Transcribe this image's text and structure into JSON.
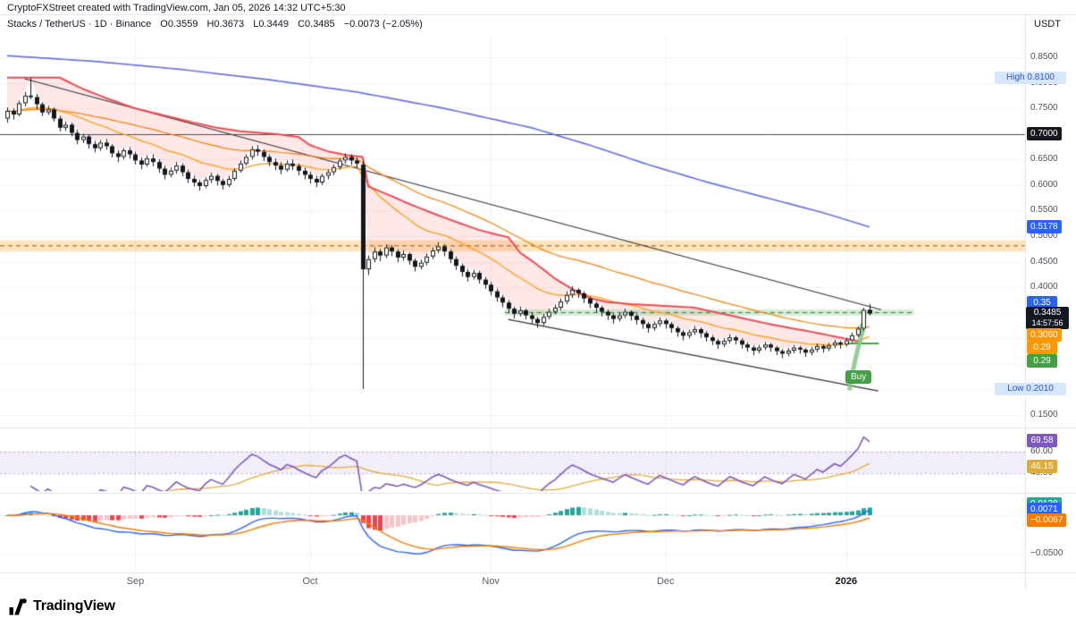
{
  "attribution": "CryptoFXStreet created with TradingView.com, Jan 05, 2026 14:32 UTC+5:30",
  "header": {
    "symbol": "Stacks / TetherUS · 1D · Binance",
    "o_label": "O",
    "o": "0.3559",
    "h_label": "H",
    "h": "0.3673",
    "l_label": "L",
    "l": "0.3449",
    "c_label": "C",
    "c": "0.3485",
    "change": "−0.0073 (−2.05%)",
    "currency": "USDT"
  },
  "logo": {
    "text": "TradingView"
  },
  "chart_data": {
    "type": "candlestick",
    "ylim": [
      0.1395,
      0.8815
    ],
    "x_axis": {
      "labels": [
        {
          "t": "Sep",
          "i": 22,
          "bold": false
        },
        {
          "t": "Oct",
          "i": 52,
          "bold": false
        },
        {
          "t": "Nov",
          "i": 83,
          "bold": false
        },
        {
          "t": "Dec",
          "i": 113,
          "bold": false
        },
        {
          "t": "2026",
          "i": 144,
          "bold": true
        }
      ]
    },
    "price_axis": {
      "ticks": [
        {
          "t": "0.8500",
          "v": 0.85
        },
        {
          "t": "0.8000",
          "v": 0.8
        },
        {
          "t": "0.7500",
          "v": 0.75
        },
        {
          "t": "0.6500",
          "v": 0.65
        },
        {
          "t": "0.6000",
          "v": 0.6
        },
        {
          "t": "0.5500",
          "v": 0.55
        },
        {
          "t": "0.5000",
          "v": 0.5
        },
        {
          "t": "0.4500",
          "v": 0.45
        },
        {
          "t": "0.4000",
          "v": 0.4
        },
        {
          "t": "0.2500",
          "v": 0.25
        },
        {
          "t": "0.1500",
          "v": 0.15
        }
      ]
    },
    "price_pills": [
      {
        "t": "High 0.8100",
        "pos": 0.81,
        "style": "hl"
      },
      {
        "t": "0.7000",
        "pos": 0.7,
        "style": "black"
      },
      {
        "t": "0.5178",
        "pos": 0.5178,
        "style": "blue"
      },
      {
        "t": "0.35",
        "pos": 0.369,
        "style": "blue"
      },
      {
        "t": "0.3485",
        "sub": "14:57:56",
        "pos": 0.3485,
        "style": "last"
      },
      {
        "t": "0.3060",
        "pos": 0.306,
        "style": "orange"
      },
      {
        "t": "0.29",
        "pos": 0.281,
        "style": "orange"
      },
      {
        "t": "0.29",
        "pos": 0.2555,
        "style": "green"
      },
      {
        "t": "Low 0.2010",
        "pos": 0.201,
        "style": "hl"
      }
    ],
    "rsi_axis": {
      "ticks": [
        {
          "t": "60.00",
          "v": 60
        },
        {
          "t": "40.00",
          "v": 40
        }
      ],
      "pills": [
        {
          "t": "69.58",
          "v": 69.58,
          "style": "purple"
        },
        {
          "t": "46.15",
          "v": 46.15,
          "style": "yellow"
        }
      ]
    },
    "macd_axis": {
      "ticks": [
        {
          "t": "−0.0500",
          "v": -0.05
        }
      ],
      "pills": [
        {
          "t": "0.0138",
          "v": 0.0138,
          "style": "teal"
        },
        {
          "t": "0.0071",
          "v": 0.0071,
          "style": "blue"
        },
        {
          "t": "−0.0067",
          "v": -0.0067,
          "style": "deeporange"
        }
      ]
    },
    "levels": {
      "black_line": 0.7,
      "orange_zone": {
        "line": 0.481,
        "top": 0.492,
        "bottom": 0.47
      },
      "green_zone": {
        "line": 0.3505,
        "top": 0.3565,
        "bottom": 0.3445,
        "from_i": 85.4,
        "to_x": 1022
      }
    },
    "trendlines": [
      {
        "i1": 3,
        "v1": 0.808,
        "i2": 150,
        "v2": 0.356
      },
      {
        "i1": 86,
        "v1": 0.337,
        "i2": 149.5,
        "v2": 0.197
      }
    ],
    "emas": {
      "fast": 20,
      "slow": 50
    },
    "ma_blue": [
      [
        0,
        0.853
      ],
      [
        15,
        0.842
      ],
      [
        30,
        0.826
      ],
      [
        45,
        0.806
      ],
      [
        60,
        0.782
      ],
      [
        75,
        0.75
      ],
      [
        90,
        0.712
      ],
      [
        100,
        0.678
      ],
      [
        110,
        0.64
      ],
      [
        120,
        0.606
      ],
      [
        130,
        0.576
      ],
      [
        140,
        0.546
      ],
      [
        148,
        0.518
      ]
    ],
    "red_stop": [
      [
        0,
        0.81
      ],
      [
        9,
        0.81
      ],
      [
        13,
        0.788
      ],
      [
        17,
        0.77
      ],
      [
        22,
        0.75
      ],
      [
        27,
        0.736
      ],
      [
        32,
        0.722
      ],
      [
        36,
        0.712
      ],
      [
        40,
        0.705
      ],
      [
        46,
        0.7
      ],
      [
        50,
        0.694
      ],
      [
        52,
        0.678
      ],
      [
        55,
        0.666
      ],
      [
        58,
        0.659
      ],
      [
        61,
        0.655
      ],
      [
        62,
        0.597
      ],
      [
        65,
        0.583
      ],
      [
        69,
        0.563
      ],
      [
        73,
        0.545
      ],
      [
        77,
        0.528
      ],
      [
        81,
        0.512
      ],
      [
        84,
        0.503
      ],
      [
        86,
        0.498
      ],
      [
        88,
        0.468
      ],
      [
        90,
        0.452
      ],
      [
        92,
        0.435
      ],
      [
        94,
        0.417
      ],
      [
        96,
        0.403
      ],
      [
        98,
        0.39
      ],
      [
        100,
        0.379
      ],
      [
        103,
        0.371
      ],
      [
        107,
        0.367
      ],
      [
        112,
        0.364
      ],
      [
        118,
        0.36
      ],
      [
        122,
        0.35
      ],
      [
        126,
        0.34
      ],
      [
        130,
        0.33
      ],
      [
        134,
        0.321
      ],
      [
        138,
        0.313
      ],
      [
        141,
        0.306
      ],
      [
        144,
        0.299
      ],
      [
        146,
        0.295
      ]
    ],
    "green_stop": {
      "v": 0.29,
      "from_i": 144.2,
      "to_i": 149.6
    },
    "buy_marker": {
      "i": 146,
      "from": 0.202,
      "to": 0.326
    },
    "buy_label": {
      "text": "Buy"
    },
    "candles": [
      [
        0.73,
        0.752,
        0.722,
        0.745
      ],
      [
        0.745,
        0.75,
        0.728,
        0.738
      ],
      [
        0.738,
        0.765,
        0.734,
        0.76
      ],
      [
        0.76,
        0.782,
        0.754,
        0.775
      ],
      [
        0.775,
        0.81,
        0.768,
        0.772
      ],
      [
        0.772,
        0.778,
        0.748,
        0.758
      ],
      [
        0.758,
        0.762,
        0.735,
        0.742
      ],
      [
        0.742,
        0.755,
        0.737,
        0.748
      ],
      [
        0.748,
        0.752,
        0.724,
        0.73
      ],
      [
        0.73,
        0.735,
        0.705,
        0.712
      ],
      [
        0.712,
        0.724,
        0.706,
        0.718
      ],
      [
        0.718,
        0.722,
        0.695,
        0.702
      ],
      [
        0.702,
        0.708,
        0.68,
        0.688
      ],
      [
        0.688,
        0.7,
        0.682,
        0.695
      ],
      [
        0.695,
        0.698,
        0.671,
        0.68
      ],
      [
        0.68,
        0.686,
        0.664,
        0.672
      ],
      [
        0.672,
        0.688,
        0.667,
        0.683
      ],
      [
        0.683,
        0.69,
        0.669,
        0.676
      ],
      [
        0.676,
        0.68,
        0.654,
        0.662
      ],
      [
        0.662,
        0.668,
        0.645,
        0.655
      ],
      [
        0.655,
        0.672,
        0.65,
        0.668
      ],
      [
        0.668,
        0.674,
        0.652,
        0.66
      ],
      [
        0.66,
        0.665,
        0.64,
        0.648
      ],
      [
        0.648,
        0.654,
        0.631,
        0.64
      ],
      [
        0.64,
        0.658,
        0.636,
        0.652
      ],
      [
        0.652,
        0.66,
        0.637,
        0.645
      ],
      [
        0.645,
        0.65,
        0.624,
        0.632
      ],
      [
        0.632,
        0.638,
        0.611,
        0.62
      ],
      [
        0.62,
        0.634,
        0.615,
        0.628
      ],
      [
        0.628,
        0.645,
        0.622,
        0.638
      ],
      [
        0.638,
        0.642,
        0.617,
        0.625
      ],
      [
        0.625,
        0.63,
        0.604,
        0.612
      ],
      [
        0.612,
        0.618,
        0.597,
        0.605
      ],
      [
        0.605,
        0.61,
        0.589,
        0.598
      ],
      [
        0.598,
        0.615,
        0.594,
        0.61
      ],
      [
        0.61,
        0.624,
        0.604,
        0.618
      ],
      [
        0.618,
        0.622,
        0.599,
        0.608
      ],
      [
        0.608,
        0.612,
        0.591,
        0.6
      ],
      [
        0.6,
        0.618,
        0.596,
        0.612
      ],
      [
        0.612,
        0.632,
        0.608,
        0.628
      ],
      [
        0.628,
        0.648,
        0.624,
        0.642
      ],
      [
        0.642,
        0.66,
        0.638,
        0.655
      ],
      [
        0.655,
        0.676,
        0.65,
        0.67
      ],
      [
        0.67,
        0.678,
        0.657,
        0.665
      ],
      [
        0.665,
        0.67,
        0.647,
        0.655
      ],
      [
        0.655,
        0.66,
        0.637,
        0.645
      ],
      [
        0.645,
        0.652,
        0.629,
        0.638
      ],
      [
        0.638,
        0.645,
        0.621,
        0.63
      ],
      [
        0.63,
        0.648,
        0.626,
        0.642
      ],
      [
        0.642,
        0.65,
        0.629,
        0.637
      ],
      [
        0.637,
        0.642,
        0.619,
        0.628
      ],
      [
        0.628,
        0.634,
        0.611,
        0.62
      ],
      [
        0.62,
        0.626,
        0.603,
        0.612
      ],
      [
        0.612,
        0.618,
        0.596,
        0.605
      ],
      [
        0.605,
        0.622,
        0.6,
        0.618
      ],
      [
        0.618,
        0.63,
        0.611,
        0.625
      ],
      [
        0.625,
        0.64,
        0.619,
        0.635
      ],
      [
        0.635,
        0.652,
        0.63,
        0.648
      ],
      [
        0.648,
        0.662,
        0.642,
        0.655
      ],
      [
        0.655,
        0.66,
        0.639,
        0.648
      ],
      [
        0.648,
        0.654,
        0.633,
        0.642
      ],
      [
        0.64,
        0.648,
        0.201,
        0.435
      ],
      [
        0.435,
        0.462,
        0.424,
        0.455
      ],
      [
        0.455,
        0.478,
        0.449,
        0.47
      ],
      [
        0.47,
        0.475,
        0.451,
        0.462
      ],
      [
        0.462,
        0.484,
        0.457,
        0.478
      ],
      [
        0.478,
        0.482,
        0.461,
        0.47
      ],
      [
        0.47,
        0.474,
        0.449,
        0.458
      ],
      [
        0.458,
        0.472,
        0.452,
        0.465
      ],
      [
        0.465,
        0.468,
        0.444,
        0.452
      ],
      [
        0.452,
        0.456,
        0.431,
        0.44
      ],
      [
        0.44,
        0.454,
        0.435,
        0.448
      ],
      [
        0.448,
        0.466,
        0.443,
        0.46
      ],
      [
        0.46,
        0.478,
        0.455,
        0.472
      ],
      [
        0.472,
        0.488,
        0.467,
        0.48
      ],
      [
        0.48,
        0.484,
        0.461,
        0.47
      ],
      [
        0.47,
        0.474,
        0.447,
        0.455
      ],
      [
        0.455,
        0.46,
        0.434,
        0.442
      ],
      [
        0.442,
        0.446,
        0.421,
        0.43
      ],
      [
        0.43,
        0.435,
        0.411,
        0.42
      ],
      [
        0.42,
        0.434,
        0.415,
        0.428
      ],
      [
        0.428,
        0.432,
        0.407,
        0.415
      ],
      [
        0.415,
        0.42,
        0.397,
        0.405
      ],
      [
        0.405,
        0.41,
        0.384,
        0.392
      ],
      [
        0.392,
        0.397,
        0.372,
        0.38
      ],
      [
        0.38,
        0.385,
        0.361,
        0.37
      ],
      [
        0.37,
        0.375,
        0.349,
        0.358
      ],
      [
        0.358,
        0.362,
        0.339,
        0.348
      ],
      [
        0.348,
        0.362,
        0.343,
        0.355
      ],
      [
        0.355,
        0.358,
        0.337,
        0.345
      ],
      [
        0.345,
        0.35,
        0.329,
        0.338
      ],
      [
        0.338,
        0.342,
        0.321,
        0.33
      ],
      [
        0.33,
        0.348,
        0.325,
        0.342
      ],
      [
        0.342,
        0.358,
        0.337,
        0.352
      ],
      [
        0.352,
        0.366,
        0.347,
        0.36
      ],
      [
        0.36,
        0.378,
        0.355,
        0.372
      ],
      [
        0.372,
        0.392,
        0.367,
        0.385
      ],
      [
        0.385,
        0.402,
        0.379,
        0.395
      ],
      [
        0.395,
        0.398,
        0.379,
        0.388
      ],
      [
        0.388,
        0.392,
        0.369,
        0.378
      ],
      [
        0.378,
        0.382,
        0.359,
        0.368
      ],
      [
        0.368,
        0.372,
        0.351,
        0.36
      ],
      [
        0.36,
        0.364,
        0.343,
        0.352
      ],
      [
        0.352,
        0.356,
        0.336,
        0.345
      ],
      [
        0.345,
        0.349,
        0.329,
        0.338
      ],
      [
        0.338,
        0.35,
        0.333,
        0.345
      ],
      [
        0.345,
        0.358,
        0.34,
        0.352
      ],
      [
        0.352,
        0.355,
        0.335,
        0.344
      ],
      [
        0.344,
        0.348,
        0.327,
        0.336
      ],
      [
        0.336,
        0.34,
        0.319,
        0.328
      ],
      [
        0.328,
        0.332,
        0.311,
        0.32
      ],
      [
        0.32,
        0.333,
        0.315,
        0.328
      ],
      [
        0.328,
        0.341,
        0.323,
        0.335
      ],
      [
        0.335,
        0.338,
        0.319,
        0.328
      ],
      [
        0.328,
        0.332,
        0.311,
        0.32
      ],
      [
        0.32,
        0.324,
        0.303,
        0.312
      ],
      [
        0.312,
        0.316,
        0.296,
        0.305
      ],
      [
        0.305,
        0.317,
        0.3,
        0.312
      ],
      [
        0.312,
        0.324,
        0.307,
        0.318
      ],
      [
        0.318,
        0.321,
        0.301,
        0.31
      ],
      [
        0.31,
        0.314,
        0.294,
        0.302
      ],
      [
        0.302,
        0.306,
        0.287,
        0.295
      ],
      [
        0.295,
        0.299,
        0.279,
        0.288
      ],
      [
        0.288,
        0.3,
        0.283,
        0.295
      ],
      [
        0.295,
        0.308,
        0.29,
        0.302
      ],
      [
        0.302,
        0.305,
        0.288,
        0.296
      ],
      [
        0.296,
        0.3,
        0.28,
        0.288
      ],
      [
        0.288,
        0.292,
        0.274,
        0.282
      ],
      [
        0.282,
        0.286,
        0.267,
        0.276
      ],
      [
        0.276,
        0.287,
        0.271,
        0.282
      ],
      [
        0.282,
        0.293,
        0.277,
        0.288
      ],
      [
        0.288,
        0.291,
        0.274,
        0.282
      ],
      [
        0.282,
        0.285,
        0.267,
        0.275
      ],
      [
        0.275,
        0.279,
        0.261,
        0.27
      ],
      [
        0.27,
        0.281,
        0.265,
        0.276
      ],
      [
        0.276,
        0.287,
        0.271,
        0.282
      ],
      [
        0.282,
        0.285,
        0.27,
        0.278
      ],
      [
        0.278,
        0.281,
        0.264,
        0.272
      ],
      [
        0.272,
        0.283,
        0.267,
        0.278
      ],
      [
        0.278,
        0.29,
        0.273,
        0.285
      ],
      [
        0.285,
        0.288,
        0.272,
        0.28
      ],
      [
        0.28,
        0.291,
        0.275,
        0.286
      ],
      [
        0.286,
        0.297,
        0.281,
        0.292
      ],
      [
        0.292,
        0.295,
        0.28,
        0.288
      ],
      [
        0.288,
        0.301,
        0.284,
        0.296
      ],
      [
        0.296,
        0.311,
        0.292,
        0.306
      ],
      [
        0.306,
        0.323,
        0.302,
        0.319
      ],
      [
        0.319,
        0.36,
        0.315,
        0.3558
      ],
      [
        0.3559,
        0.3673,
        0.3449,
        0.3485
      ]
    ]
  }
}
